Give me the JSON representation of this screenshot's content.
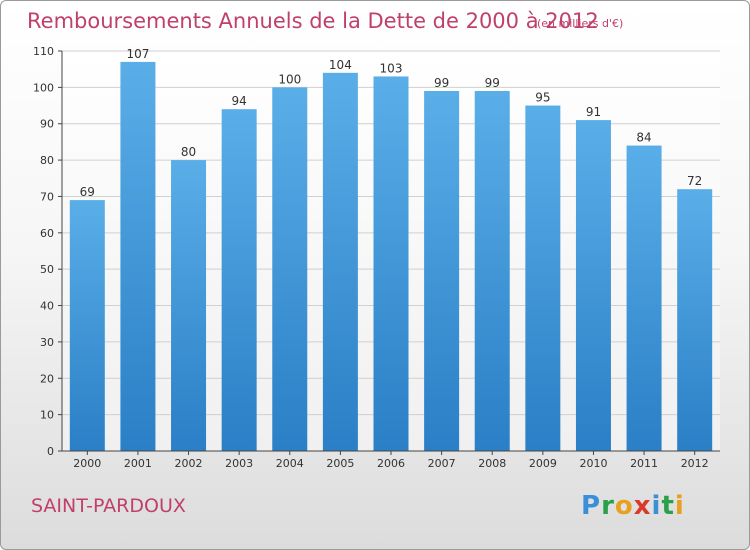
{
  "header": {
    "title": "Remboursements Annuels de la Dette de 2000 à 2012",
    "subtitle": "(en milliers d'€)"
  },
  "footer": {
    "commune": "SAINT-PARDOUX",
    "logo": {
      "p": "P",
      "r": "r",
      "o": "o",
      "x": "x",
      "i": "i",
      "t": "t",
      "i2": "i"
    }
  },
  "colors": {
    "title": "#c0406a",
    "bar_top": "#5aaee8",
    "bar_bottom": "#2a7fc6",
    "grid": "#d0d0d0"
  },
  "chart_data": {
    "type": "bar",
    "title": "Remboursements Annuels de la Dette de 2000 à 2012",
    "subtitle": "(en milliers d'€)",
    "categories": [
      "2000",
      "2001",
      "2002",
      "2003",
      "2004",
      "2005",
      "2006",
      "2007",
      "2008",
      "2009",
      "2010",
      "2011",
      "2012"
    ],
    "values": [
      69,
      107,
      80,
      94,
      100,
      104,
      103,
      99,
      99,
      95,
      91,
      84,
      72
    ],
    "ylim": [
      0,
      110
    ],
    "yticks": [
      0,
      10,
      20,
      30,
      40,
      50,
      60,
      70,
      80,
      90,
      100,
      110
    ],
    "grid": true,
    "data_labels": true
  }
}
